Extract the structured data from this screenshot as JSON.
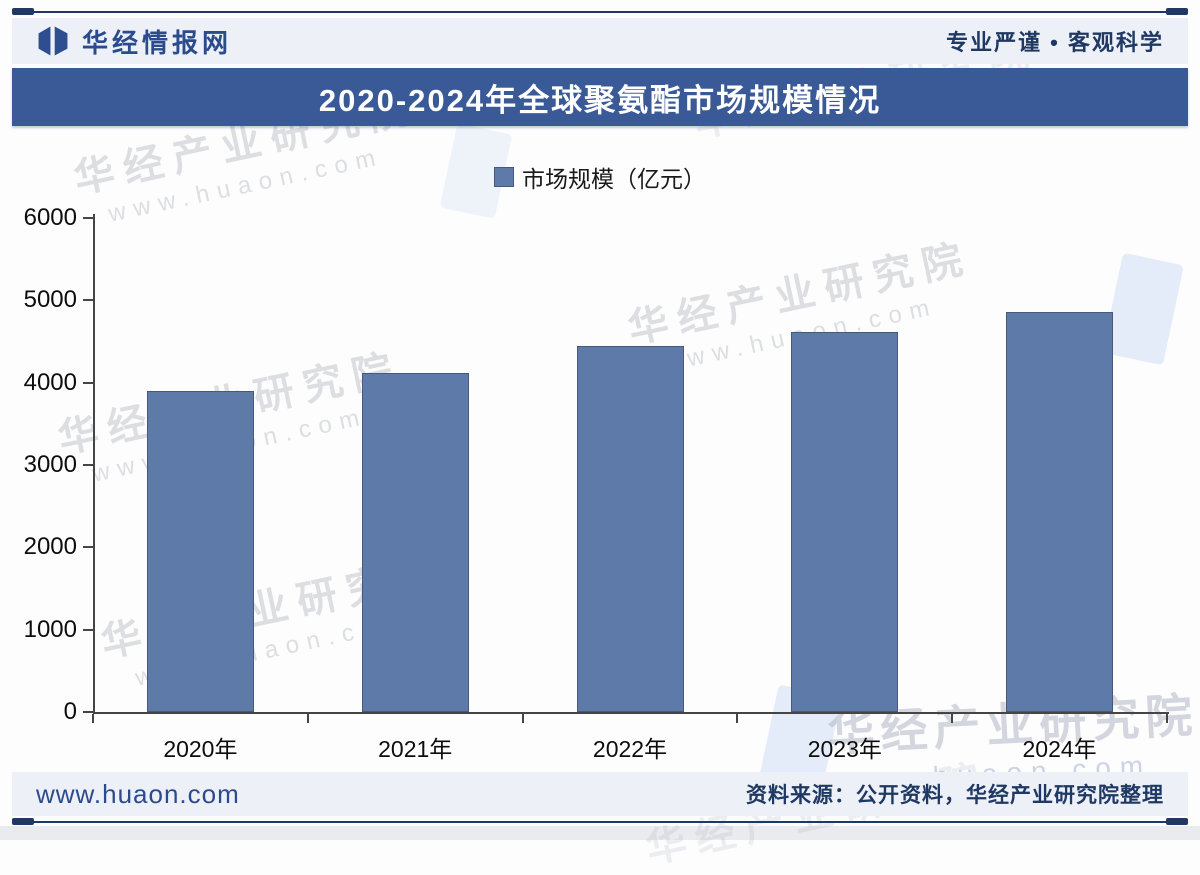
{
  "header": {
    "brand": "华经情报网",
    "slogan": "专业严谨 • 客观科学"
  },
  "banner": {
    "title": "2020-2024年全球聚氨酯市场规模情况"
  },
  "legend": {
    "label": "市场规模（亿元）"
  },
  "chart_data": {
    "type": "bar",
    "title": "2020-2024年全球聚氨酯市场规模情况",
    "series_name": "市场规模（亿元）",
    "categories": [
      "2020年",
      "2021年",
      "2022年",
      "2023年",
      "2024年"
    ],
    "values": [
      3900,
      4120,
      4450,
      4610,
      4860
    ],
    "ylabel": "",
    "xlabel": "",
    "ylim": [
      0,
      6000
    ],
    "yticks": [
      0,
      1000,
      2000,
      3000,
      4000,
      5000,
      6000
    ],
    "grid": false,
    "legend_position": "top-center",
    "bar_color": "#5e7aa8",
    "bar_border_color": "#46587c"
  },
  "footer": {
    "website": "www.huaon.com",
    "source": "资料来源：公开资料，华经产业研究院整理"
  },
  "watermarks": {
    "brand": "华经产业研究院",
    "url": "www.huaon.com"
  },
  "colors": {
    "banner_bg": "#3a5a97",
    "bar_fill": "#5e7aa8",
    "bar_border": "#46587c",
    "accent_navy": "#1f3864",
    "brand_blue": "#2b4b8c",
    "strip_bg": "#edf1f7"
  }
}
